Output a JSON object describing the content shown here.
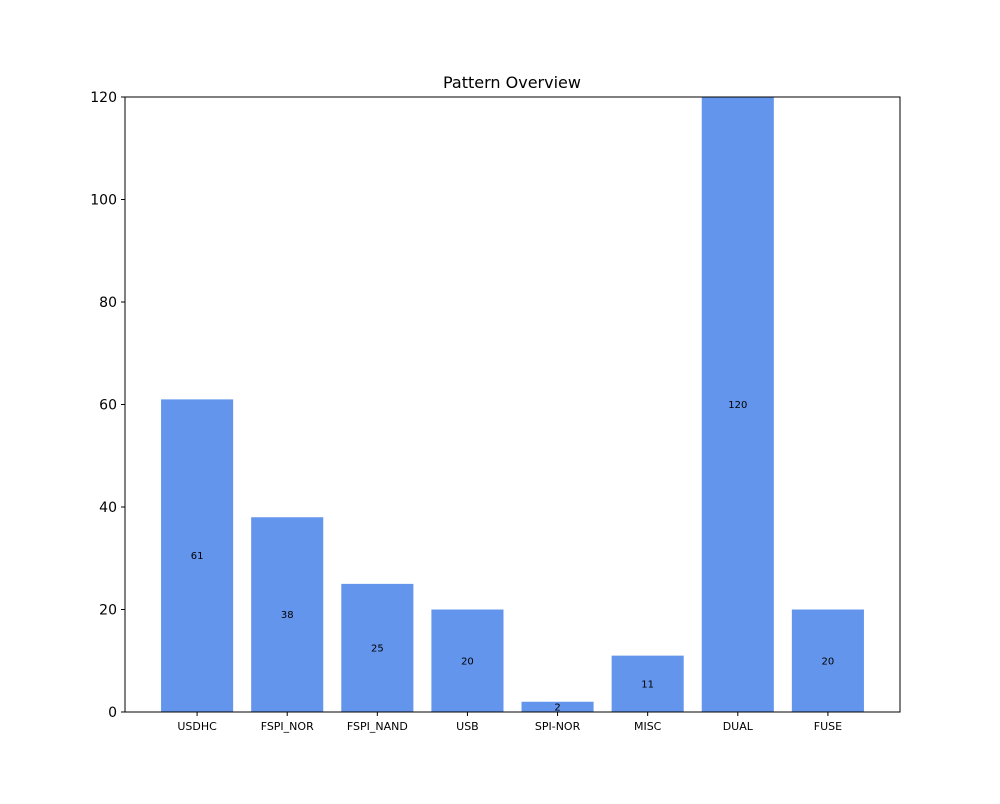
{
  "chart_data": {
    "type": "bar",
    "title": "Pattern Overview",
    "xlabel": "",
    "ylabel": "",
    "categories": [
      "USDHC",
      "FSPI_NOR",
      "FSPI_NAND",
      "USB",
      "SPI-NOR",
      "MISC",
      "DUAL",
      "FUSE"
    ],
    "values": [
      61,
      38,
      25,
      20,
      2,
      11,
      120,
      20
    ],
    "ylim": [
      0,
      120
    ],
    "yticks": [
      0,
      20,
      40,
      60,
      80,
      100,
      120
    ],
    "grid": false,
    "legend": "none",
    "bar_color": "#6495ED",
    "data_labels_position": "middle"
  }
}
